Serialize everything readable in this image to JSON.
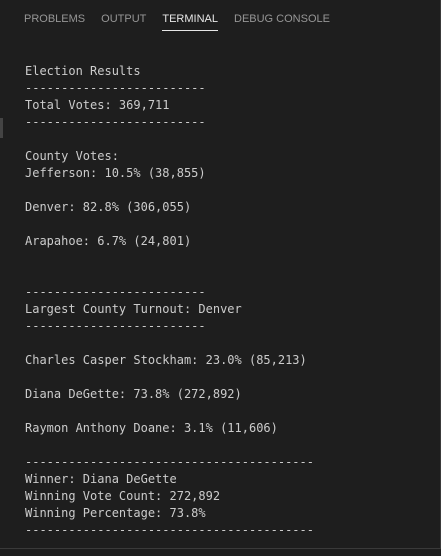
{
  "tabs": [
    "PROBLEMS",
    "OUTPUT",
    "TERMINAL",
    "DEBUG CONSOLE"
  ],
  "active_tab": "TERMINAL",
  "terminal": {
    "blocks": [
      [
        "Election Results",
        "-------------------------",
        "Total Votes: 369,711",
        "-------------------------"
      ],
      [
        "County Votes:",
        "Jefferson: 10.5% (38,855)"
      ],
      [
        "Denver: 82.8% (306,055)"
      ],
      [
        "Arapahoe: 6.7% (24,801)"
      ],
      [
        "-------------------------",
        "Largest County Turnout: Denver",
        "-------------------------"
      ],
      [
        "Charles Casper Stockham: 23.0% (85,213)"
      ],
      [
        "Diana DeGette: 73.8% (272,892)"
      ],
      [
        "Raymon Anthony Doane: 3.1% (11,606)"
      ],
      [
        "----------------------------------------",
        "Winner: Diana DeGette",
        "Winning Vote Count: 272,892",
        "Winning Percentage: 73.8%",
        "----------------------------------------"
      ]
    ]
  }
}
